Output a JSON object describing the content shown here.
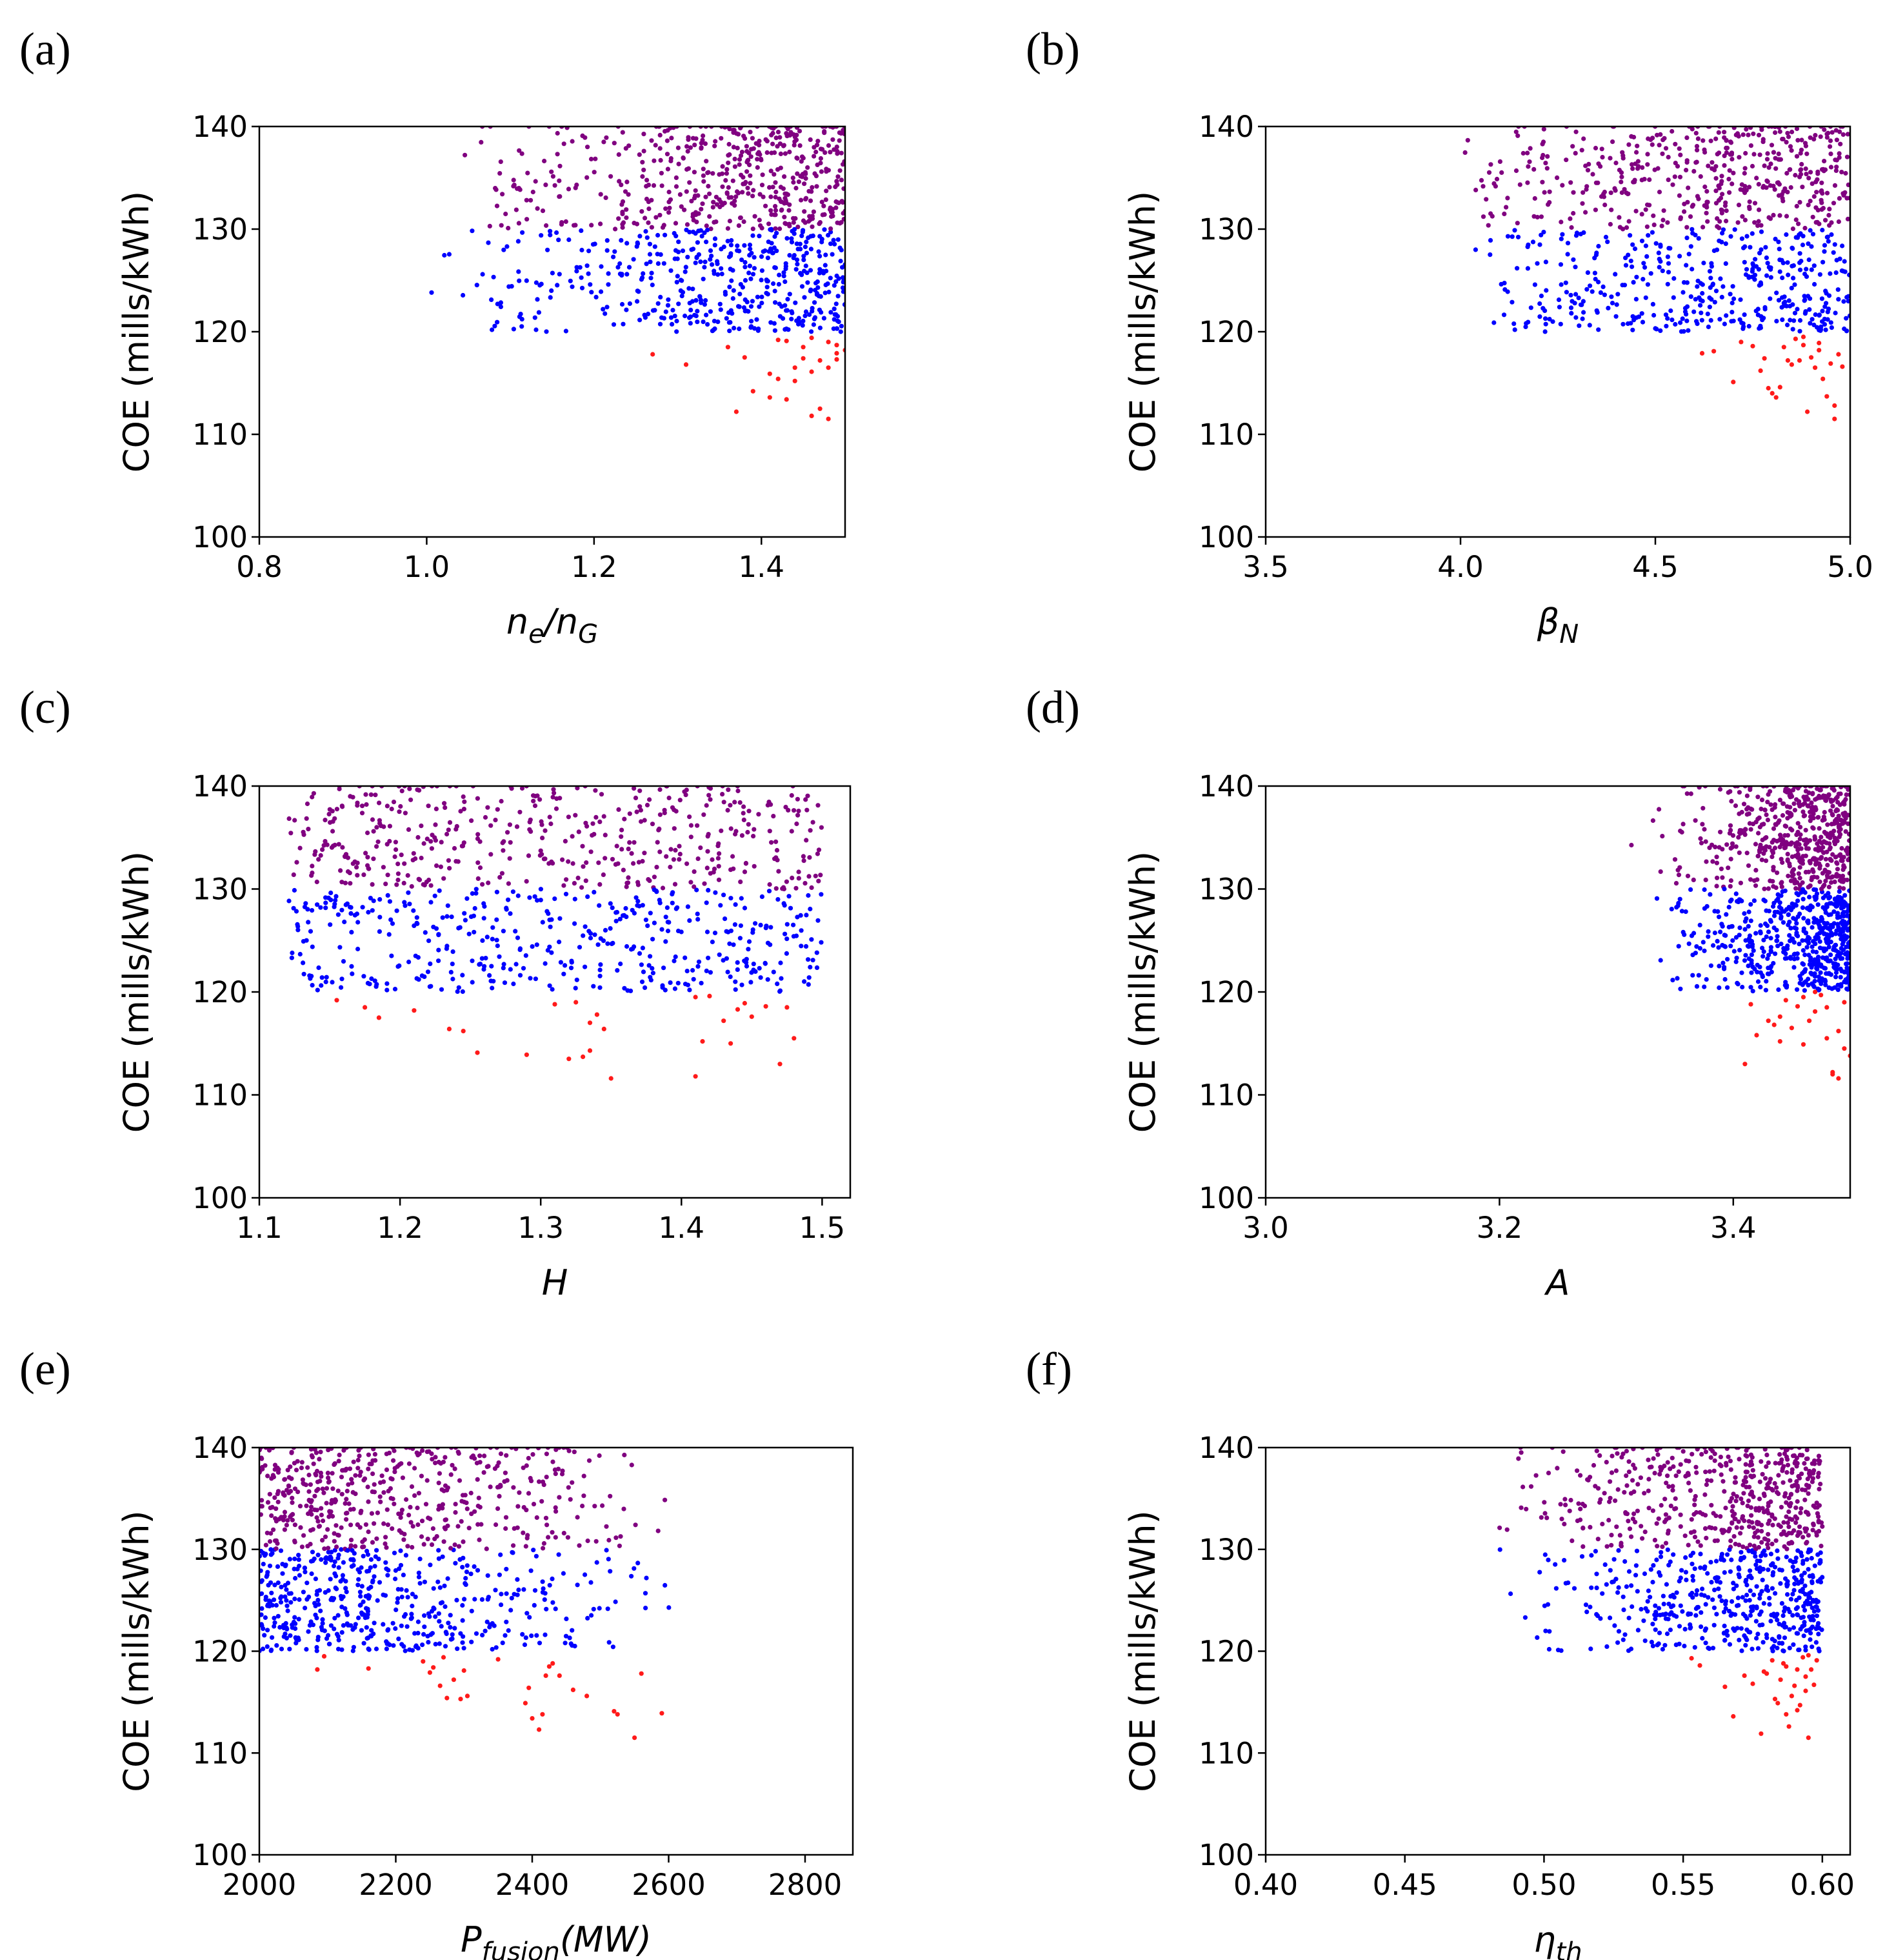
{
  "colors": {
    "low": "#ff1a1a",
    "mid": "#0000ff",
    "high": "#800080"
  },
  "chart_data": [
    {
      "id": "a",
      "panel_label": "(a)",
      "type": "scatter",
      "ylabel": "COE (mills/kWh)",
      "xlabel": {
        "main": "n",
        "sub": "e",
        "main2": "/n",
        "sub2": "G"
      },
      "xlim": [
        0.8,
        1.5
      ],
      "ylim": [
        100,
        140
      ],
      "xticks": [
        0.8,
        1.0,
        1.2,
        1.4
      ],
      "xtick_labels": [
        "0.8",
        "1.0",
        "1.2",
        "1.4"
      ],
      "yticks": [
        100,
        110,
        120,
        130,
        140
      ],
      "ytick_labels": [
        "100",
        "110",
        "120",
        "130",
        "140"
      ],
      "sample": {
        "xmin": 0.99,
        "xmax": 1.5,
        "skew": 0.45,
        "n": 1000,
        "seed": 11,
        "low_x": [
          1.27,
          1.31,
          1.36,
          1.37,
          1.38,
          1.39,
          1.41,
          1.42,
          1.43,
          1.44,
          1.45,
          1.46,
          1.47,
          1.48,
          1.49,
          1.5,
          1.46,
          1.44,
          1.48,
          1.42,
          1.49,
          1.47,
          1.43,
          1.45,
          1.41,
          1.48,
          1.46,
          1.49
        ],
        "low_y": [
          117.8,
          116.8,
          118.5,
          112.2,
          117.5,
          114.2,
          113.6,
          115.4,
          113.4,
          116.5,
          118.5,
          111.8,
          112.5,
          119,
          117.3,
          118.2,
          116.1,
          115.2,
          111.5,
          119.2,
          118.7,
          117.2,
          119.1,
          117.4,
          115.9,
          116.5,
          119.4,
          117.9
        ]
      }
    },
    {
      "id": "b",
      "panel_label": "(b)",
      "type": "scatter",
      "ylabel": "COE (mills/kWh)",
      "xlabel": {
        "main": "β",
        "sub": "N"
      },
      "xlim": [
        3.5,
        5.0
      ],
      "ylim": [
        100,
        140
      ],
      "xticks": [
        3.5,
        4.0,
        4.5,
        5.0
      ],
      "xtick_labels": [
        "3.5",
        "4.0",
        "4.5",
        "5.0"
      ],
      "yticks": [
        100,
        110,
        120,
        130,
        140
      ],
      "ytick_labels": [
        "100",
        "110",
        "120",
        "130",
        "140"
      ],
      "sample": {
        "xmin": 4.0,
        "xmax": 5.0,
        "skew": 0.6,
        "n": 900,
        "seed": 23,
        "low_x": [
          4.62,
          4.65,
          4.7,
          4.72,
          4.75,
          4.77,
          4.79,
          4.8,
          4.81,
          4.82,
          4.83,
          4.85,
          4.86,
          4.87,
          4.88,
          4.89,
          4.9,
          4.91,
          4.92,
          4.93,
          4.94,
          4.95,
          4.96,
          4.97,
          4.98,
          4.84,
          4.88,
          4.92,
          4.78,
          4.96
        ],
        "low_y": [
          117.9,
          118.1,
          115.1,
          119,
          118.6,
          116.2,
          114.5,
          114,
          113.6,
          114.6,
          118.5,
          116.8,
          119.3,
          117.2,
          118.7,
          112.2,
          117.5,
          116.5,
          118.2,
          115.4,
          113.7,
          116.9,
          111.5,
          117.8,
          116.6,
          117.2,
          119.5,
          118.9,
          117.4,
          112.8
        ]
      }
    },
    {
      "id": "c",
      "panel_label": "(c)",
      "type": "scatter",
      "ylabel": "COE (mills/kWh)",
      "xlabel": {
        "main": "H"
      },
      "xlim": [
        1.1,
        1.52
      ],
      "ylim": [
        100,
        140
      ],
      "xticks": [
        1.1,
        1.2,
        1.3,
        1.4,
        1.5
      ],
      "xtick_labels": [
        "1.1",
        "1.2",
        "1.3",
        "1.4",
        "1.5"
      ],
      "yticks": [
        100,
        110,
        120,
        130,
        140
      ],
      "ytick_labels": [
        "100",
        "110",
        "120",
        "130",
        "140"
      ],
      "sample": {
        "xmin": 1.12,
        "xmax": 1.5,
        "skew": 1.0,
        "n": 900,
        "seed": 37,
        "low_x": [
          1.155,
          1.175,
          1.185,
          1.21,
          1.235,
          1.245,
          1.255,
          1.29,
          1.31,
          1.32,
          1.325,
          1.33,
          1.335,
          1.34,
          1.345,
          1.35,
          1.41,
          1.415,
          1.42,
          1.43,
          1.435,
          1.44,
          1.445,
          1.45,
          1.46,
          1.47,
          1.475,
          1.48,
          1.41,
          1.335
        ],
        "low_y": [
          119.2,
          118.5,
          117.5,
          118.2,
          116.4,
          116.2,
          114.1,
          113.9,
          118.8,
          113.5,
          119,
          113.7,
          117,
          117.8,
          116.4,
          111.6,
          111.8,
          115.2,
          119.6,
          117.2,
          115,
          118.3,
          118.9,
          117.6,
          118.6,
          113,
          118.5,
          115.5,
          119.5,
          114.3
        ]
      }
    },
    {
      "id": "d",
      "panel_label": "(d)",
      "type": "scatter",
      "ylabel": "COE (mills/kWh)",
      "xlabel": {
        "main": "A"
      },
      "xlim": [
        3.0,
        3.5
      ],
      "ylim": [
        100,
        140
      ],
      "xticks": [
        3.0,
        3.2,
        3.4
      ],
      "xtick_labels": [
        "3.0",
        "3.2",
        "3.4"
      ],
      "yticks": [
        100,
        110,
        120,
        130,
        140
      ],
      "ytick_labels": [
        "100",
        "110",
        "120",
        "130",
        "140"
      ],
      "sample": {
        "xmin": 3.29,
        "xmax": 3.5,
        "skew": 0.3,
        "n": 1100,
        "seed": 53,
        "low_x": [
          3.41,
          3.415,
          3.42,
          3.43,
          3.435,
          3.44,
          3.445,
          3.45,
          3.455,
          3.46,
          3.465,
          3.47,
          3.475,
          3.48,
          3.485,
          3.49,
          3.495,
          3.5,
          3.47,
          3.48,
          3.49,
          3.46,
          3.44,
          3.485,
          3.495
        ],
        "low_y": [
          113,
          118.8,
          115.8,
          117.2,
          116.8,
          117.6,
          119.2,
          116.5,
          118.6,
          119.5,
          117.2,
          118.1,
          119.7,
          115.5,
          112.2,
          111.6,
          114.5,
          113.8,
          120,
          118.5,
          116.2,
          114.9,
          115.2,
          112,
          119
        ]
      }
    },
    {
      "id": "e",
      "panel_label": "(e)",
      "type": "scatter",
      "ylabel": "COE (mills/kWh)",
      "xlabel": {
        "main": "P",
        "sub": "fusion",
        "main2": "(MW)"
      },
      "xlim": [
        2000,
        2870
      ],
      "ylim": [
        100,
        140
      ],
      "xticks": [
        2000,
        2200,
        2400,
        2600,
        2800
      ],
      "xtick_labels": [
        "2000",
        "2200",
        "2400",
        "2600",
        "2800"
      ],
      "yticks": [
        100,
        110,
        120,
        130,
        140
      ],
      "ytick_labels": [
        "100",
        "110",
        "120",
        "130",
        "140"
      ],
      "sample": {
        "xmin": 2000,
        "xmax": 2610,
        "skew": 0.5,
        "n": 1000,
        "seed": 71,
        "reverse": true,
        "low_x": [
          2085,
          2095,
          2160,
          2240,
          2255,
          2265,
          2275,
          2285,
          2295,
          2305,
          2350,
          2390,
          2400,
          2410,
          2415,
          2420,
          2425,
          2440,
          2460,
          2480,
          2520,
          2525,
          2550,
          2560,
          2590,
          2270,
          2300,
          2250,
          2430,
          2395
        ],
        "low_y": [
          118.2,
          119.5,
          118.3,
          119,
          118.4,
          116.6,
          115.4,
          117.2,
          115.3,
          115.6,
          119.2,
          114.9,
          113.4,
          112.3,
          113.8,
          117.6,
          118.5,
          117.6,
          116.2,
          115.6,
          114.1,
          113.8,
          111.5,
          117.8,
          113.9,
          119.4,
          118.1,
          117.9,
          118.8,
          116.4
        ]
      }
    },
    {
      "id": "f",
      "panel_label": "(f)",
      "type": "scatter",
      "ylabel": "COE (mills/kWh)",
      "xlabel": {
        "main": "η",
        "sub": "th"
      },
      "xlim": [
        0.4,
        0.61
      ],
      "ylim": [
        100,
        140
      ],
      "xticks": [
        0.4,
        0.45,
        0.5,
        0.55,
        0.6
      ],
      "xtick_labels": [
        "0.40",
        "0.45",
        "0.50",
        "0.55",
        "0.60"
      ],
      "yticks": [
        100,
        110,
        120,
        130,
        140
      ],
      "ytick_labels": [
        "100",
        "110",
        "120",
        "130",
        "140"
      ],
      "sample": {
        "xmin": 0.475,
        "xmax": 0.6,
        "skew": 0.4,
        "n": 1000,
        "seed": 89,
        "low_x": [
          0.553,
          0.556,
          0.565,
          0.568,
          0.572,
          0.575,
          0.578,
          0.58,
          0.582,
          0.584,
          0.585,
          0.586,
          0.587,
          0.588,
          0.589,
          0.59,
          0.591,
          0.592,
          0.593,
          0.594,
          0.595,
          0.596,
          0.597,
          0.598,
          0.583,
          0.587,
          0.591,
          0.595,
          0.579,
          0.594
        ],
        "low_y": [
          119.3,
          118.6,
          116.5,
          113.6,
          117.6,
          116.8,
          111.9,
          117.8,
          119.1,
          114.9,
          117.2,
          118.8,
          113.8,
          112.6,
          115.6,
          116.6,
          118.2,
          114.7,
          119.4,
          117.5,
          111.5,
          118.2,
          116.7,
          119.1,
          115.3,
          118.5,
          114.2,
          119.6,
          118,
          116.1
        ]
      }
    }
  ]
}
